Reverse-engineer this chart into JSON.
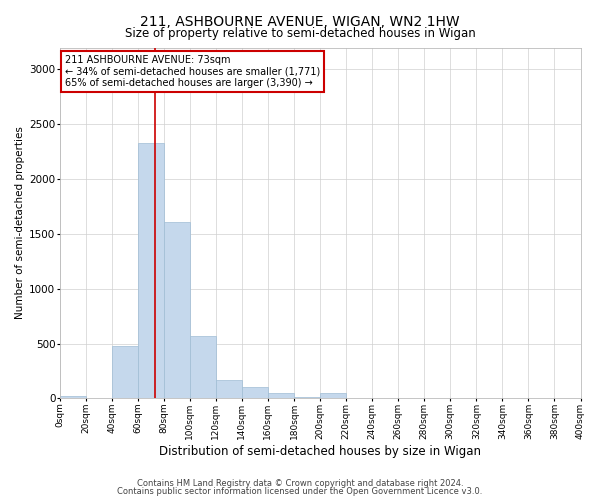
{
  "title": "211, ASHBOURNE AVENUE, WIGAN, WN2 1HW",
  "subtitle": "Size of property relative to semi-detached houses in Wigan",
  "xlabel": "Distribution of semi-detached houses by size in Wigan",
  "ylabel": "Number of semi-detached properties",
  "footnote1": "Contains HM Land Registry data © Crown copyright and database right 2024.",
  "footnote2": "Contains public sector information licensed under the Open Government Licence v3.0.",
  "annotation_title": "211 ASHBOURNE AVENUE: 73sqm",
  "annotation_line1": "← 34% of semi-detached houses are smaller (1,771)",
  "annotation_line2": "65% of semi-detached houses are larger (3,390) →",
  "property_size": 73,
  "bar_edges": [
    0,
    20,
    40,
    60,
    80,
    100,
    120,
    140,
    160,
    180,
    200,
    220,
    240,
    260,
    280,
    300,
    320,
    340,
    360,
    380,
    400
  ],
  "bar_heights": [
    25,
    0,
    480,
    2330,
    1610,
    570,
    165,
    105,
    45,
    10,
    45,
    0,
    0,
    0,
    0,
    0,
    0,
    0,
    0,
    0
  ],
  "bar_color": "#c5d8ec",
  "bar_edge_color": "#a0bdd4",
  "vline_color": "#cc0000",
  "vline_x": 73,
  "ylim": [
    0,
    3200
  ],
  "yticks": [
    0,
    500,
    1000,
    1500,
    2000,
    2500,
    3000
  ],
  "annotation_box_color": "#cc0000",
  "grid_color": "#d0d0d0",
  "background_color": "#ffffff",
  "title_fontsize": 10,
  "subtitle_fontsize": 8.5,
  "xlabel_fontsize": 8.5,
  "ylabel_fontsize": 7.5,
  "tick_fontsize": 6.5,
  "annotation_fontsize": 7,
  "footnote_fontsize": 6
}
